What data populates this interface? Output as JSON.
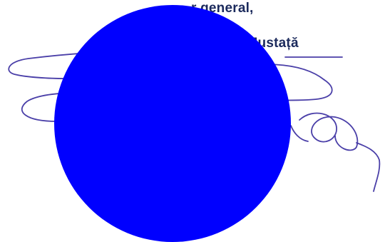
{
  "document": {
    "line_1": "r general,",
    "line_2": "ina Mustață"
  },
  "signature": {
    "ink_color": "#4a3fa8"
  },
  "redaction": {
    "color": "#0000ff"
  }
}
